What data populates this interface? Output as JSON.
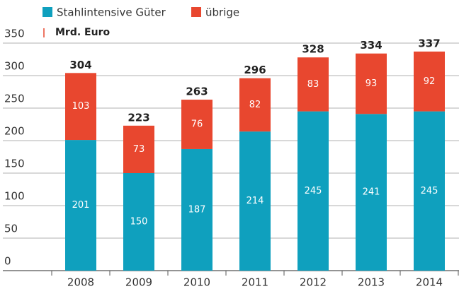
{
  "chart_data": {
    "type": "stacked_bar",
    "y_unit_label": "Mrd. Euro",
    "categories": [
      "2008",
      "2009",
      "2010",
      "2011",
      "2012",
      "2013",
      "2014"
    ],
    "series": [
      {
        "name": "Stahlintensive Güter",
        "color": "#0fa0be",
        "values": [
          201,
          150,
          187,
          214,
          245,
          241,
          245
        ]
      },
      {
        "name": "übrige",
        "color": "#e8472f",
        "values": [
          103,
          73,
          76,
          82,
          83,
          93,
          92
        ]
      }
    ],
    "totals": [
      304,
      223,
      263,
      296,
      328,
      334,
      337
    ],
    "ylim": [
      0,
      350
    ],
    "yticks": [
      0,
      50,
      100,
      150,
      200,
      250,
      300,
      350
    ],
    "grid": true
  }
}
